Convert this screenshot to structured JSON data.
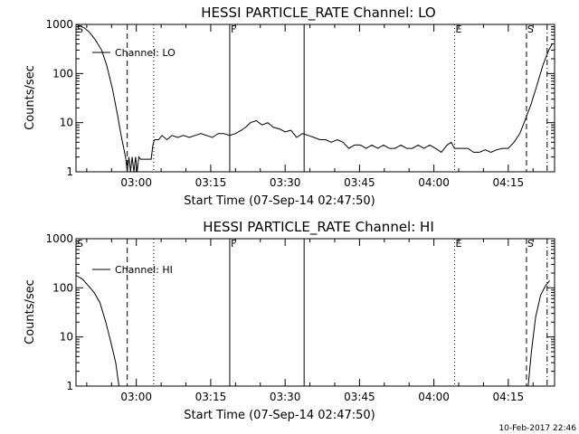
{
  "footer_timestamp": "10-Feb-2017 22:46",
  "chart_data": [
    {
      "type": "line",
      "title": "HESSI PARTICLE_RATE Channel: LO",
      "xlabel": "Start Time (07-Sep-14 02:47:50)",
      "ylabel": "Counts/sec",
      "yscale": "log",
      "ylim": [
        1,
        1000
      ],
      "xlim": [
        "02:47:50",
        "04:24:20"
      ],
      "x_ticks": [
        "03:00",
        "03:15",
        "03:30",
        "03:45",
        "04:00",
        "04:15"
      ],
      "y_ticks": [
        "1",
        "10",
        "100",
        "1000"
      ],
      "legend": {
        "placement": "top-left",
        "entries": [
          "Channel: LO"
        ]
      },
      "grid": false,
      "markers": [
        {
          "label": "S",
          "time": "02:47:50",
          "style": "none"
        },
        {
          "label": "",
          "time": "02:58:10",
          "style": "dashed"
        },
        {
          "label": "",
          "time": "03:03:30",
          "style": "dotted"
        },
        {
          "label": "F",
          "time": "03:18:50",
          "style": "solid"
        },
        {
          "label": "",
          "time": "03:33:50",
          "style": "solid"
        },
        {
          "label": "E",
          "time": "04:04:10",
          "style": "dotted"
        },
        {
          "label": "S",
          "time": "04:18:40",
          "style": "dashed"
        },
        {
          "label": "",
          "time": "04:22:50",
          "style": "dashdot"
        }
      ],
      "series": [
        {
          "name": "Channel: LO",
          "points": [
            [
              "02:47:50",
              1000
            ],
            [
              "02:49:30",
              850
            ],
            [
              "02:50:30",
              700
            ],
            [
              "02:51:40",
              500
            ],
            [
              "02:53:00",
              300
            ],
            [
              "02:54:00",
              150
            ],
            [
              "02:55:10",
              50
            ],
            [
              "02:56:10",
              15
            ],
            [
              "02:57:00",
              5
            ],
            [
              "02:57:50",
              2
            ],
            [
              "02:58:10",
              1
            ],
            [
              "02:58:30",
              2
            ],
            [
              "02:58:50",
              1
            ],
            [
              "02:59:10",
              2
            ],
            [
              "02:59:30",
              1
            ],
            [
              "02:59:50",
              2
            ],
            [
              "03:00:10",
              1
            ],
            [
              "03:00:30",
              2
            ],
            [
              "03:00:50",
              1.8
            ],
            [
              "03:02:00",
              1.8
            ],
            [
              "03:03:00",
              1.8
            ],
            [
              "03:03:20",
              3.5
            ],
            [
              "03:03:40",
              4.5
            ],
            [
              "03:04:30",
              4.5
            ],
            [
              "03:05:10",
              5.5
            ],
            [
              "03:06:10",
              4.5
            ],
            [
              "03:07:10",
              5.5
            ],
            [
              "03:08:20",
              5
            ],
            [
              "03:09:30",
              5.5
            ],
            [
              "03:10:40",
              5
            ],
            [
              "03:11:50",
              5.5
            ],
            [
              "03:13:00",
              6
            ],
            [
              "03:14:10",
              5.5
            ],
            [
              "03:15:20",
              5
            ],
            [
              "03:16:30",
              6
            ],
            [
              "03:17:40",
              6
            ],
            [
              "03:18:50",
              5.5
            ],
            [
              "03:20:00",
              6
            ],
            [
              "03:21:10",
              7
            ],
            [
              "03:22:00",
              8
            ],
            [
              "03:23:00",
              10
            ],
            [
              "03:24:10",
              11
            ],
            [
              "03:25:20",
              9
            ],
            [
              "03:26:30",
              10
            ],
            [
              "03:27:40",
              8
            ],
            [
              "03:28:50",
              7.5
            ],
            [
              "03:30:00",
              6.5
            ],
            [
              "03:31:10",
              7
            ],
            [
              "03:32:20",
              5
            ],
            [
              "03:33:30",
              6
            ],
            [
              "03:34:40",
              5.5
            ],
            [
              "03:35:50",
              5
            ],
            [
              "03:37:00",
              4.5
            ],
            [
              "03:38:10",
              4.5
            ],
            [
              "03:39:20",
              4
            ],
            [
              "03:40:30",
              4.5
            ],
            [
              "03:41:40",
              4
            ],
            [
              "03:42:50",
              3
            ],
            [
              "03:44:00",
              3.5
            ],
            [
              "03:45:10",
              3.5
            ],
            [
              "03:46:20",
              3
            ],
            [
              "03:47:30",
              3.5
            ],
            [
              "03:48:40",
              3
            ],
            [
              "03:49:50",
              3.5
            ],
            [
              "03:51:00",
              3
            ],
            [
              "03:52:10",
              3
            ],
            [
              "03:53:20",
              3.5
            ],
            [
              "03:54:30",
              3
            ],
            [
              "03:55:40",
              3
            ],
            [
              "03:56:50",
              3.5
            ],
            [
              "03:58:00",
              3
            ],
            [
              "03:59:10",
              3.5
            ],
            [
              "04:00:20",
              3
            ],
            [
              "04:01:30",
              2.5
            ],
            [
              "04:02:40",
              3.5
            ],
            [
              "04:03:30",
              4
            ],
            [
              "04:04:10",
              3
            ],
            [
              "04:05:30",
              3
            ],
            [
              "04:06:50",
              3
            ],
            [
              "04:08:00",
              2.5
            ],
            [
              "04:09:10",
              2.5
            ],
            [
              "04:10:20",
              2.8
            ],
            [
              "04:11:30",
              2.5
            ],
            [
              "04:12:40",
              2.8
            ],
            [
              "04:13:50",
              3
            ],
            [
              "04:15:00",
              3
            ],
            [
              "04:16:10",
              4
            ],
            [
              "04:17:20",
              6
            ],
            [
              "04:18:30",
              12
            ],
            [
              "04:19:40",
              25
            ],
            [
              "04:20:50",
              60
            ],
            [
              "04:22:00",
              150
            ],
            [
              "04:23:10",
              300
            ],
            [
              "04:23:50",
              400
            ]
          ]
        }
      ]
    },
    {
      "type": "line",
      "title": "HESSI PARTICLE_RATE Channel: HI",
      "xlabel": "Start Time (07-Sep-14 02:47:50)",
      "ylabel": "Counts/sec",
      "yscale": "log",
      "ylim": [
        1,
        1000
      ],
      "xlim": [
        "02:47:50",
        "04:24:20"
      ],
      "x_ticks": [
        "03:00",
        "03:15",
        "03:30",
        "03:45",
        "04:00",
        "04:15"
      ],
      "y_ticks": [
        "1",
        "10",
        "100",
        "1000"
      ],
      "legend": {
        "placement": "top-left",
        "entries": [
          "Channel: HI"
        ]
      },
      "grid": false,
      "markers": [
        {
          "label": "S",
          "time": "02:47:50",
          "style": "none"
        },
        {
          "label": "",
          "time": "02:58:10",
          "style": "dashed"
        },
        {
          "label": "",
          "time": "03:03:30",
          "style": "dotted"
        },
        {
          "label": "F",
          "time": "03:18:50",
          "style": "solid"
        },
        {
          "label": "",
          "time": "03:33:50",
          "style": "solid"
        },
        {
          "label": "E",
          "time": "04:04:10",
          "style": "dotted"
        },
        {
          "label": "S",
          "time": "04:18:40",
          "style": "dashed"
        },
        {
          "label": "",
          "time": "04:22:50",
          "style": "dashdot"
        }
      ],
      "series": [
        {
          "name": "Channel: HI",
          "points": [
            [
              "02:47:50",
              180
            ],
            [
              "02:49:10",
              150
            ],
            [
              "02:50:20",
              110
            ],
            [
              "02:51:30",
              80
            ],
            [
              "02:52:40",
              50
            ],
            [
              "02:53:50",
              20
            ],
            [
              "02:54:50",
              8
            ],
            [
              "02:55:50",
              3
            ],
            [
              "02:56:30",
              1
            ]
          ],
          "points_2": [
            [
              "04:19:00",
              1
            ],
            [
              "04:19:40",
              5
            ],
            [
              "04:20:30",
              25
            ],
            [
              "04:21:30",
              70
            ],
            [
              "04:22:30",
              110
            ],
            [
              "04:23:20",
              140
            ]
          ]
        }
      ]
    }
  ]
}
